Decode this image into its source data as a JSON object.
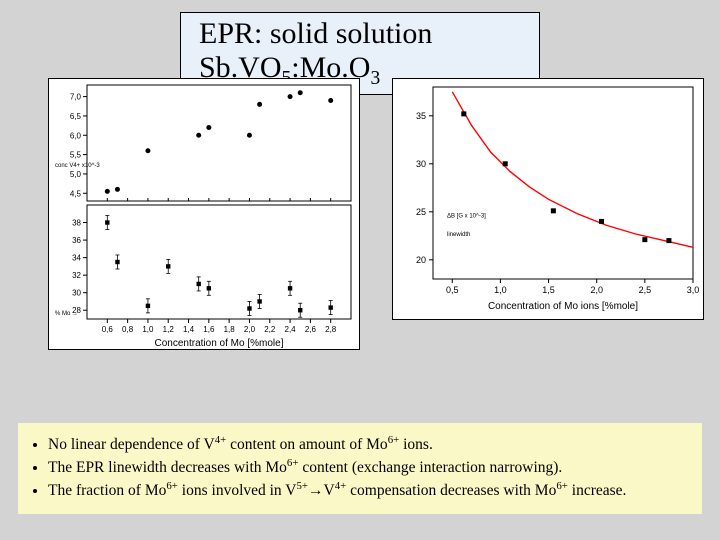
{
  "title_html": "EPR: solid solution Sb.VO<sub>5</sub>:Mo.O<sub>3</sub>",
  "left_chart": {
    "background": "#ffffff",
    "axis_color": "#000000",
    "tick_color": "#000000",
    "point_color": "#000000",
    "xlabel": "Concentration of Mo [%mole]",
    "xlim": [
      0.4,
      3.0
    ],
    "xticks": [
      0.6,
      0.8,
      1.0,
      1.2,
      1.4,
      1.6,
      1.8,
      2.0,
      2.2,
      2.4,
      2.6,
      2.8
    ],
    "top": {
      "ylim": [
        4.3,
        7.3
      ],
      "yticks": [
        4.5,
        5.0,
        5.5,
        6.0,
        6.5,
        7.0
      ],
      "ytick_labels": [
        "4,5",
        "5,0",
        "5,5",
        "6,0",
        "6,5",
        "7,0"
      ],
      "ylabel_tiny": "conc V4+ x10^-3",
      "points": [
        [
          0.6,
          4.55
        ],
        [
          0.7,
          4.6
        ],
        [
          1.0,
          5.6
        ],
        [
          1.5,
          6.0
        ],
        [
          1.6,
          6.2
        ],
        [
          2.0,
          6.0
        ],
        [
          2.1,
          6.8
        ],
        [
          2.4,
          7.0
        ],
        [
          2.5,
          7.1
        ],
        [
          2.8,
          6.9
        ]
      ]
    },
    "bottom": {
      "ylim": [
        27,
        40
      ],
      "yticks": [
        28,
        30,
        32,
        34,
        36,
        38
      ],
      "ylabel_tiny": "% Mo → ",
      "points": [
        [
          0.6,
          38.0
        ],
        [
          0.7,
          33.5
        ],
        [
          1.0,
          28.5
        ],
        [
          1.2,
          33.0
        ],
        [
          1.5,
          31.0
        ],
        [
          1.6,
          30.5
        ],
        [
          2.0,
          28.2
        ],
        [
          2.1,
          29.0
        ],
        [
          2.4,
          30.5
        ],
        [
          2.5,
          28.0
        ],
        [
          2.8,
          28.3
        ]
      ],
      "errorbars": 0.8
    }
  },
  "right_chart": {
    "background": "#ffffff",
    "axis_color": "#000000",
    "point_color": "#000000",
    "curve_color": "#ff0000",
    "xlabel": "Concentration of Mo ions [%mole]",
    "xlim": [
      0.3,
      3.0
    ],
    "xticks": [
      0.5,
      1.0,
      1.5,
      2.0,
      2.5,
      3.0
    ],
    "xtick_labels": [
      "0,5",
      "1,0",
      "1,5",
      "2,0",
      "2,5",
      "3,0"
    ],
    "ylim": [
      18,
      38
    ],
    "yticks": [
      20,
      25,
      30,
      35
    ],
    "ylabel_tiny1": "ΔB [G x 10^-3]",
    "ylabel_tiny2": "linewidth",
    "points": [
      [
        0.62,
        35.2
      ],
      [
        1.05,
        30.0
      ],
      [
        1.55,
        25.1
      ],
      [
        2.05,
        24.0
      ],
      [
        2.5,
        22.1
      ],
      [
        2.75,
        22.0
      ]
    ],
    "curve": [
      [
        0.5,
        37.5
      ],
      [
        0.7,
        34.0
      ],
      [
        0.9,
        31.2
      ],
      [
        1.1,
        29.2
      ],
      [
        1.3,
        27.6
      ],
      [
        1.5,
        26.3
      ],
      [
        1.8,
        24.8
      ],
      [
        2.1,
        23.6
      ],
      [
        2.4,
        22.7
      ],
      [
        2.7,
        22.0
      ],
      [
        3.0,
        21.3
      ]
    ]
  },
  "bullets": [
    " No linear dependence of V<sup>4+</sup> content on amount of Mo<sup>6+</sup>  ions.",
    "The EPR linewidth decreases with Mo<sup>6+</sup> content (exchange interaction narrowing).",
    "The fraction of Mo<sup>6+</sup> ions involved in V<sup>5+</sup>→V<sup>4+</sup> compensation decreases with   Mo<sup>6+</sup> increase."
  ]
}
